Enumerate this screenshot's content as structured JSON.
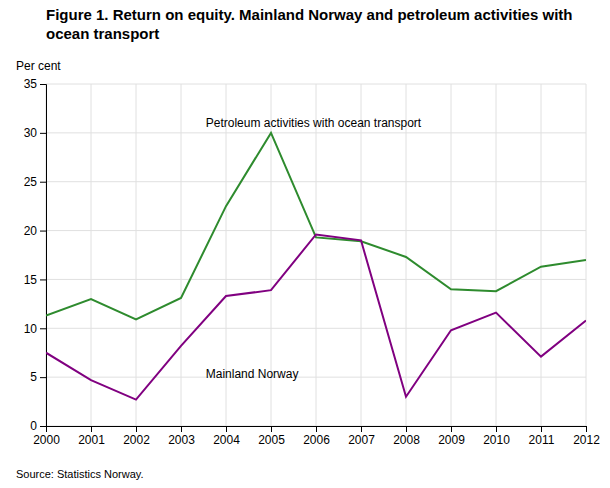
{
  "chart_data": {
    "type": "line",
    "title": "Figure 1. Return on equity. Mainland Norway and petroleum activities with ocean transport",
    "y_label": "Per cent",
    "source": "Source: Statistics Norway.",
    "x": [
      2000,
      2001,
      2002,
      2003,
      2004,
      2005,
      2006,
      2007,
      2008,
      2009,
      2010,
      2011,
      2012
    ],
    "series": [
      {
        "name": "Petroleum activities with ocean transport",
        "color": "#2e8b2e",
        "values": [
          11.3,
          13.0,
          10.9,
          13.1,
          22.5,
          30.0,
          19.3,
          18.9,
          17.3,
          14.0,
          13.8,
          16.3,
          17.0
        ]
      },
      {
        "name": "Mainland Norway",
        "color": "#800080",
        "values": [
          7.5,
          4.7,
          2.7,
          8.2,
          13.3,
          13.9,
          19.6,
          19.0,
          3.0,
          9.8,
          11.6,
          7.1,
          10.8
        ]
      }
    ],
    "annotations": [
      {
        "text": "Petroleum activities with ocean transport",
        "x": 2003.55,
        "y": 30.3
      },
      {
        "text": "Mainland Norway",
        "x": 2003.55,
        "y": 6.0
      }
    ],
    "xlim": [
      2000,
      2012
    ],
    "xticks": [
      2000,
      2001,
      2002,
      2003,
      2004,
      2005,
      2006,
      2007,
      2008,
      2009,
      2010,
      2011,
      2012
    ],
    "ylim": [
      0,
      35
    ],
    "yticks": [
      0,
      5,
      10,
      15,
      20,
      25,
      30,
      35
    ],
    "grid": true
  }
}
